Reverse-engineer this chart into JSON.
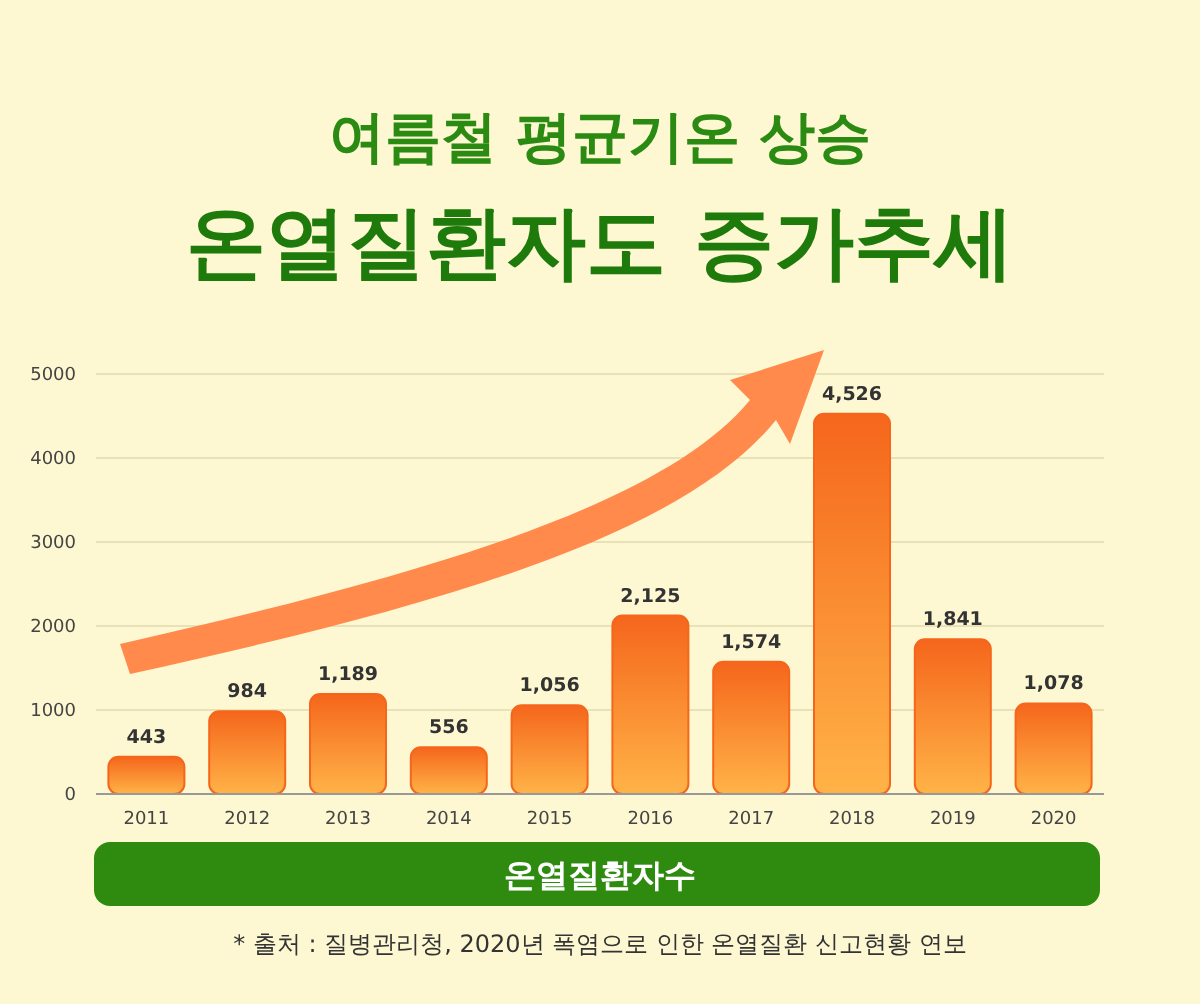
{
  "chart_data": {
    "type": "bar",
    "title": "여름철 평균기온 상승",
    "subtitle": "온열질환자도 증가추세",
    "xlabel": "온열질환자수",
    "categories": [
      "2011",
      "2012",
      "2013",
      "2014",
      "2015",
      "2016",
      "2017",
      "2018",
      "2019",
      "2020"
    ],
    "values": [
      443,
      984,
      1189,
      556,
      1056,
      2125,
      1574,
      4526,
      1841,
      1078
    ],
    "value_labels": [
      "443",
      "984",
      "1,189",
      "556",
      "1,056",
      "2,125",
      "1,574",
      "4,526",
      "1,841",
      "1,078"
    ],
    "color": "#f5661c",
    "ylim": [
      0,
      5000
    ],
    "yticks": [
      0,
      1000,
      2000,
      3000,
      4000,
      5000
    ],
    "grid": "y",
    "annotations": [
      "* 출처 : 질병관리청, 2020년 폭염으로 인한 온열질환 신고현황 연보"
    ]
  }
}
